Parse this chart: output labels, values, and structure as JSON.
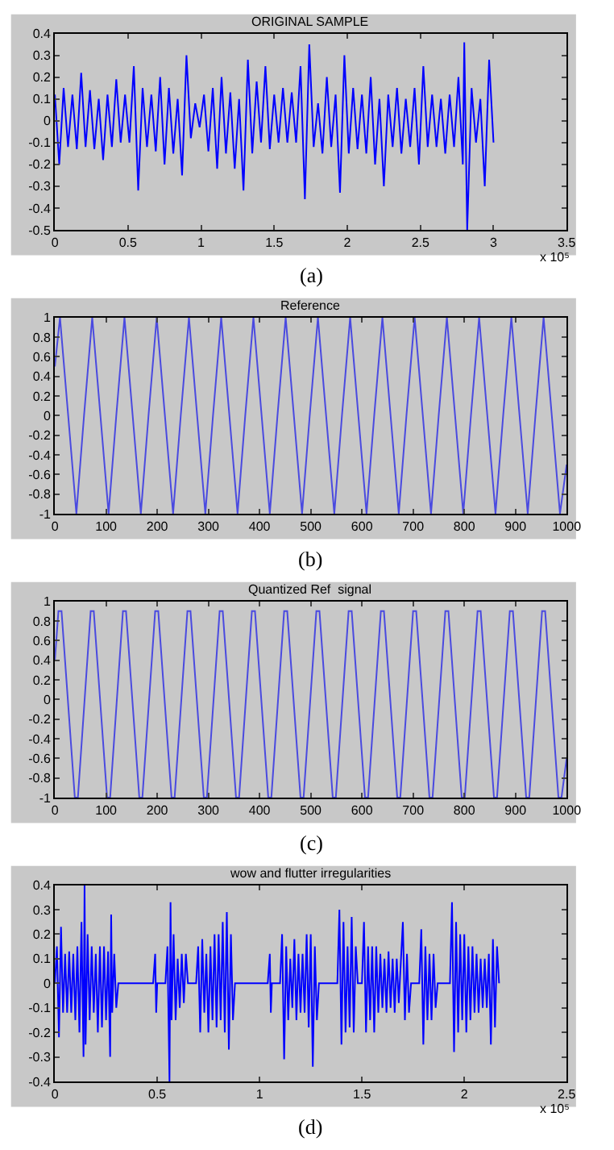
{
  "chart_data": [
    {
      "type": "line",
      "title": "ORIGINAL SAMPLE",
      "xlabel": "x 10⁵",
      "annotations": [
        "(a)"
      ],
      "color": "#0000ff",
      "xlim": [
        0,
        3.5
      ],
      "ylim": [
        -0.5,
        0.4
      ],
      "xticks": [
        0,
        0.5,
        1,
        1.5,
        2,
        2.5,
        3,
        3.5
      ],
      "yticks": [
        -0.5,
        -0.4,
        -0.3,
        -0.2,
        -0.1,
        0,
        0.1,
        0.2,
        0.3,
        0.4
      ],
      "x": [
        0,
        0.03,
        0.06,
        0.09,
        0.12,
        0.15,
        0.18,
        0.21,
        0.24,
        0.27,
        0.3,
        0.33,
        0.36,
        0.39,
        0.42,
        0.45,
        0.48,
        0.51,
        0.54,
        0.57,
        0.6,
        0.63,
        0.66,
        0.69,
        0.72,
        0.75,
        0.78,
        0.81,
        0.84,
        0.87,
        0.9,
        0.93,
        0.96,
        0.99,
        1.02,
        1.05,
        1.08,
        1.11,
        1.14,
        1.17,
        1.2,
        1.23,
        1.26,
        1.29,
        1.32,
        1.35,
        1.38,
        1.41,
        1.44,
        1.47,
        1.5,
        1.53,
        1.56,
        1.59,
        1.62,
        1.65,
        1.68,
        1.71,
        1.74,
        1.77,
        1.8,
        1.83,
        1.86,
        1.89,
        1.92,
        1.95,
        1.98,
        2.01,
        2.04,
        2.07,
        2.1,
        2.13,
        2.16,
        2.19,
        2.22,
        2.25,
        2.28,
        2.31,
        2.34,
        2.37,
        2.4,
        2.43,
        2.46,
        2.49,
        2.52,
        2.55,
        2.58,
        2.61,
        2.64,
        2.67,
        2.7,
        2.73,
        2.76,
        2.79,
        2.8,
        2.82,
        2.85,
        2.88,
        2.91,
        2.94,
        2.97,
        3.0
      ],
      "values": [
        0.12,
        -0.2,
        0.15,
        -0.12,
        0.12,
        -0.13,
        0.22,
        -0.12,
        0.14,
        -0.13,
        0.1,
        -0.18,
        0.12,
        -0.12,
        0.19,
        -0.1,
        0.12,
        -0.1,
        0.25,
        -0.32,
        0.15,
        -0.12,
        0.12,
        -0.14,
        0.2,
        -0.2,
        0.15,
        -0.15,
        0.1,
        -0.25,
        0.3,
        -0.08,
        0.08,
        -0.03,
        0.12,
        -0.14,
        0.15,
        -0.22,
        0.2,
        -0.15,
        0.13,
        -0.22,
        0.1,
        -0.32,
        0.28,
        -0.15,
        0.18,
        -0.1,
        0.25,
        -0.13,
        0.12,
        -0.1,
        0.15,
        -0.1,
        0.13,
        -0.1,
        0.25,
        -0.36,
        0.35,
        -0.12,
        0.08,
        -0.15,
        0.2,
        -0.12,
        0.12,
        -0.33,
        0.3,
        -0.15,
        0.15,
        -0.13,
        0.12,
        -0.15,
        0.2,
        -0.2,
        0.1,
        -0.3,
        0.12,
        -0.12,
        0.15,
        -0.15,
        0.1,
        -0.12,
        0.15,
        -0.2,
        0.25,
        -0.12,
        0.12,
        -0.12,
        0.1,
        -0.15,
        0.12,
        -0.12,
        0.2,
        -0.2,
        0.36,
        -0.5,
        0.15,
        -0.1,
        0.1,
        -0.3,
        0.28,
        -0.1
      ]
    },
    {
      "type": "line",
      "title": "Reference",
      "annotations": [
        "(b)"
      ],
      "color": "#4a4ae0",
      "xlim": [
        0,
        1000
      ],
      "ylim": [
        -1,
        1
      ],
      "xticks": [
        0,
        100,
        200,
        300,
        400,
        500,
        600,
        700,
        800,
        900,
        1000
      ],
      "yticks": [
        -1,
        -0.8,
        -0.6,
        -0.4,
        -0.2,
        0,
        0.2,
        0.4,
        0.6,
        0.8,
        1
      ],
      "x": [
        0,
        10,
        26,
        42,
        57,
        73,
        89,
        105,
        120,
        136,
        152,
        168,
        183,
        199,
        215,
        231,
        246,
        262,
        278,
        294,
        309,
        325,
        341,
        357,
        372,
        388,
        404,
        420,
        435,
        451,
        467,
        483,
        498,
        514,
        530,
        546,
        561,
        577,
        593,
        609,
        624,
        640,
        656,
        672,
        687,
        703,
        719,
        735,
        750,
        766,
        782,
        798,
        813,
        829,
        845,
        861,
        876,
        892,
        908,
        924,
        939,
        955,
        971,
        987,
        1000
      ],
      "values": [
        0.5,
        1,
        0,
        -1,
        0,
        1,
        0,
        -1,
        0,
        1,
        0,
        -1,
        0,
        1,
        0,
        -1,
        0,
        1,
        0,
        -1,
        0,
        1,
        0,
        -1,
        0,
        1,
        0,
        -1,
        0,
        1,
        0,
        -1,
        0,
        1,
        0,
        -1,
        0,
        1,
        0,
        -1,
        0,
        1,
        0,
        -1,
        0,
        1,
        0,
        -1,
        0,
        1,
        0,
        -1,
        0,
        1,
        0,
        -1,
        0,
        1,
        0,
        -1,
        0,
        1,
        0,
        -1,
        -0.5
      ]
    },
    {
      "type": "line",
      "title": "Quantized Ref  signal",
      "annotations": [
        "(c)"
      ],
      "color": "#4a4ae0",
      "xlim": [
        0,
        1000
      ],
      "ylim": [
        -1,
        1
      ],
      "xticks": [
        0,
        100,
        200,
        300,
        400,
        500,
        600,
        700,
        800,
        900,
        1000
      ],
      "yticks": [
        -1,
        -0.8,
        -0.6,
        -0.4,
        -0.2,
        0,
        0.2,
        0.4,
        0.6,
        0.8,
        1
      ],
      "x": [
        0,
        7,
        13,
        39,
        45,
        70,
        76,
        102,
        108,
        133,
        139,
        165,
        171,
        196,
        202,
        228,
        234,
        259,
        265,
        291,
        297,
        322,
        328,
        354,
        360,
        385,
        391,
        417,
        423,
        448,
        454,
        480,
        486,
        511,
        517,
        543,
        549,
        574,
        580,
        606,
        612,
        637,
        643,
        669,
        675,
        700,
        706,
        732,
        738,
        763,
        769,
        795,
        801,
        826,
        832,
        858,
        864,
        889,
        895,
        921,
        927,
        952,
        958,
        984,
        990,
        1000
      ],
      "values": [
        0.4,
        0.9,
        0.9,
        -1,
        -1,
        0.9,
        0.9,
        -1,
        -1,
        0.9,
        0.9,
        -1,
        -1,
        0.9,
        0.9,
        -1,
        -1,
        0.9,
        0.9,
        -1,
        -1,
        0.9,
        0.9,
        -1,
        -1,
        0.9,
        0.9,
        -1,
        -1,
        0.9,
        0.9,
        -1,
        -1,
        0.9,
        0.9,
        -1,
        -1,
        0.9,
        0.9,
        -1,
        -1,
        0.9,
        0.9,
        -1,
        -1,
        0.9,
        0.9,
        -1,
        -1,
        0.9,
        0.9,
        -1,
        -1,
        0.9,
        0.9,
        -1,
        -1,
        0.9,
        0.9,
        -1,
        -1,
        0.9,
        0.9,
        -1,
        -1,
        -0.6
      ]
    },
    {
      "type": "line",
      "title": "wow and flutter irregularities",
      "xlabel": "x 10⁵",
      "annotations": [
        "(d)"
      ],
      "color": "#0000ff",
      "xlim": [
        0,
        2.5
      ],
      "ylim": [
        -0.4,
        0.4
      ],
      "xticks": [
        0,
        0.5,
        1,
        1.5,
        2,
        2.5
      ],
      "yticks": [
        -0.4,
        -0.3,
        -0.2,
        -0.1,
        0,
        0.1,
        0.2,
        0.3,
        0.4
      ],
      "x": [
        0,
        0.01,
        0.02,
        0.03,
        0.04,
        0.05,
        0.06,
        0.07,
        0.08,
        0.09,
        0.1,
        0.11,
        0.12,
        0.13,
        0.14,
        0.145,
        0.15,
        0.16,
        0.17,
        0.18,
        0.19,
        0.2,
        0.21,
        0.22,
        0.23,
        0.24,
        0.25,
        0.26,
        0.27,
        0.275,
        0.28,
        0.29,
        0.3,
        0.31,
        0.48,
        0.49,
        0.495,
        0.5,
        0.54,
        0.55,
        0.56,
        0.565,
        0.57,
        0.58,
        0.59,
        0.6,
        0.61,
        0.62,
        0.63,
        0.64,
        0.65,
        0.69,
        0.7,
        0.71,
        0.72,
        0.73,
        0.74,
        0.75,
        0.76,
        0.77,
        0.78,
        0.79,
        0.8,
        0.81,
        0.82,
        0.83,
        0.84,
        0.85,
        0.86,
        0.87,
        0.88,
        1.04,
        1.05,
        1.055,
        1.06,
        1.1,
        1.11,
        1.12,
        1.13,
        1.14,
        1.15,
        1.16,
        1.17,
        1.18,
        1.19,
        1.2,
        1.21,
        1.22,
        1.23,
        1.24,
        1.25,
        1.26,
        1.27,
        1.28,
        1.29,
        1.38,
        1.39,
        1.4,
        1.41,
        1.42,
        1.43,
        1.44,
        1.45,
        1.46,
        1.47,
        1.48,
        1.5,
        1.51,
        1.52,
        1.53,
        1.54,
        1.55,
        1.56,
        1.57,
        1.58,
        1.59,
        1.6,
        1.61,
        1.62,
        1.63,
        1.64,
        1.65,
        1.66,
        1.67,
        1.68,
        1.7,
        1.71,
        1.72,
        1.73,
        1.74,
        1.78,
        1.79,
        1.8,
        1.81,
        1.82,
        1.83,
        1.84,
        1.85,
        1.86,
        1.87,
        1.93,
        1.94,
        1.95,
        1.96,
        1.97,
        1.98,
        1.99,
        2.0,
        2.01,
        2.02,
        2.03,
        2.04,
        2.05,
        2.06,
        2.07,
        2.08,
        2.09,
        2.1,
        2.11,
        2.12,
        2.13,
        2.14,
        2.15,
        2.16,
        2.17
      ],
      "values": [
        0,
        0.15,
        -0.22,
        0.23,
        -0.12,
        0.12,
        -0.12,
        0.13,
        -0.12,
        0.12,
        -0.15,
        0.15,
        -0.2,
        0.25,
        -0.3,
        0.4,
        -0.25,
        0.2,
        -0.15,
        0.15,
        -0.12,
        0.12,
        -0.2,
        0.15,
        -0.18,
        0.15,
        -0.15,
        0.13,
        -0.3,
        0.28,
        -0.12,
        0.12,
        -0.1,
        0,
        0,
        0.12,
        -0.12,
        0,
        0,
        0.15,
        -0.4,
        0.33,
        -0.15,
        0.2,
        -0.15,
        0.1,
        -0.1,
        0.12,
        -0.08,
        0.12,
        0,
        0,
        0.15,
        -0.2,
        0.18,
        -0.12,
        0.12,
        -0.2,
        0.15,
        -0.15,
        0.2,
        -0.18,
        0.2,
        -0.15,
        0.25,
        -0.2,
        0.29,
        -0.27,
        0.2,
        -0.15,
        0,
        0,
        0.12,
        -0.12,
        0,
        0,
        0.2,
        -0.31,
        0.15,
        -0.15,
        0.1,
        -0.1,
        0.18,
        -0.15,
        0.12,
        -0.12,
        0.12,
        -0.12,
        0.2,
        -0.18,
        0.2,
        -0.34,
        0.15,
        -0.15,
        0,
        0,
        0.3,
        -0.25,
        0.25,
        -0.2,
        0.15,
        -0.18,
        0.27,
        -0.2,
        0.15,
        0,
        0,
        0.25,
        -0.2,
        0.15,
        -0.15,
        0.15,
        -0.2,
        0.15,
        -0.12,
        0.12,
        -0.1,
        0.1,
        -0.12,
        0.13,
        -0.1,
        0.1,
        -0.12,
        0.1,
        -0.08,
        0.25,
        -0.15,
        0.12,
        -0.12,
        0,
        0,
        0.22,
        -0.25,
        0.15,
        -0.15,
        0.12,
        -0.15,
        0.12,
        -0.1,
        0,
        0,
        0.33,
        -0.28,
        0.25,
        -0.2,
        0.2,
        -0.15,
        0.2,
        -0.2,
        0.15,
        -0.15,
        0.15,
        -0.12,
        0.12,
        -0.12,
        0.1,
        -0.1,
        0.1,
        -0.1,
        0.12,
        -0.25,
        0.18,
        -0.18,
        0.15,
        0
      ]
    }
  ]
}
